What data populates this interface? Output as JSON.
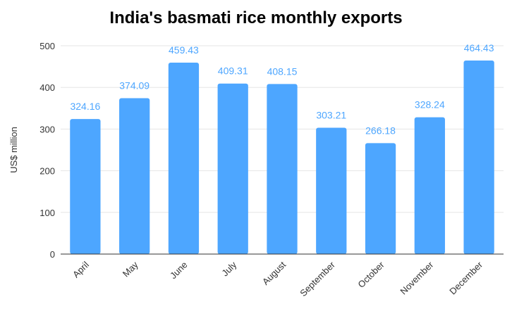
{
  "chart_data": {
    "type": "bar",
    "title": "India's basmati rice monthly exports",
    "xlabel": "",
    "ylabel": "US$ million",
    "categories": [
      "April",
      "May",
      "June",
      "July",
      "August",
      "September",
      "October",
      "November",
      "December"
    ],
    "values": [
      324.16,
      374.09,
      459.43,
      409.31,
      408.15,
      303.21,
      266.18,
      328.24,
      464.43
    ],
    "value_labels": [
      "324.16",
      "374.09",
      "459.43",
      "409.31",
      "408.15",
      "303.21",
      "266.18",
      "328.24",
      "464.43"
    ],
    "ylim": [
      0,
      500
    ],
    "yticks": [
      0,
      100,
      200,
      300,
      400,
      500
    ],
    "grid": true,
    "legend": "none",
    "colors": {
      "bar": "#4da6ff",
      "data_label": "#4da6ff",
      "grid": "#e6e6e6",
      "axis": "#333333",
      "tick_text": "#333333"
    }
  }
}
